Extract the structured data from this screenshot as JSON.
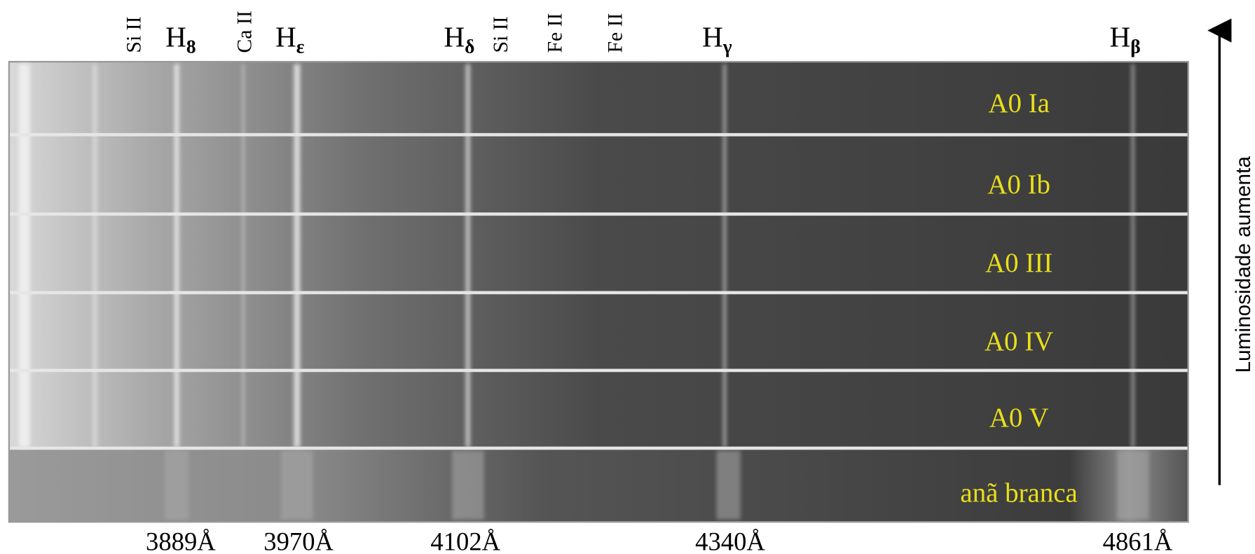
{
  "top_labels": [
    {
      "text": "Si II"
    },
    {
      "base": "H",
      "sub": "8"
    },
    {
      "text": "Ca II"
    },
    {
      "base": "H",
      "sub": "ε"
    },
    {
      "base": "H",
      "sub": "δ"
    },
    {
      "text": "Si II"
    },
    {
      "text": "Fe II"
    },
    {
      "text": "Fe II"
    },
    {
      "base": "H",
      "sub": "γ"
    },
    {
      "base": "H",
      "sub": "β"
    }
  ],
  "wavelengths": [
    "3889Å",
    "3970Å",
    "4102Å",
    "4340Å",
    "4861Å"
  ],
  "rows": [
    "A0 Ia",
    "A0 Ib",
    "A0 III",
    "A0 IV",
    "A0 V",
    "anã branca"
  ],
  "axis_label": "Luminosidade aumenta"
}
